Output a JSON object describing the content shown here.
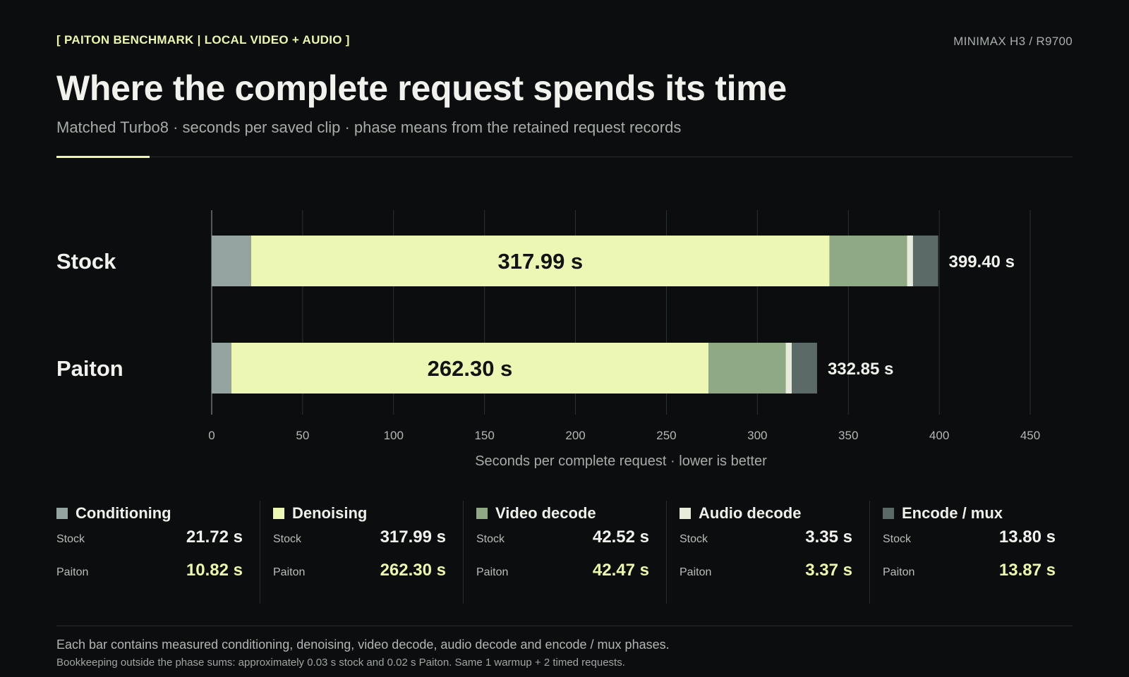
{
  "header": {
    "kicker": "[ PAITON BENCHMARK | LOCAL VIDEO + AUDIO ]",
    "system": "MINIMAX H3 / R9700",
    "title": "Where the complete request spends its time",
    "subtitle": "Matched Turbo8 · seconds per saved clip · phase means from the retained request records"
  },
  "chart_data": {
    "type": "bar",
    "orientation": "horizontal",
    "stacked": true,
    "categories": [
      "Stock",
      "Paiton"
    ],
    "series": [
      {
        "name": "Conditioning",
        "color": "#95a4a1",
        "values": [
          21.72,
          10.82
        ]
      },
      {
        "name": "Denoising",
        "color": "#edf7b4",
        "values": [
          317.99,
          262.3
        ]
      },
      {
        "name": "Video decode",
        "color": "#8fa984",
        "values": [
          42.52,
          42.47
        ]
      },
      {
        "name": "Audio decode",
        "color": "#e6ecd9",
        "values": [
          3.35,
          3.37
        ]
      },
      {
        "name": "Encode / mux",
        "color": "#5b6a67",
        "values": [
          13.8,
          13.87
        ]
      }
    ],
    "totals": [
      "399.40 s",
      "332.85 s"
    ],
    "inbar_labels": [
      "317.99 s",
      "262.30 s"
    ],
    "xlabel": "Seconds per complete request · lower is better",
    "xlim": [
      0,
      450
    ],
    "xticks": [
      0,
      50,
      100,
      150,
      200,
      250,
      300,
      350,
      400,
      450
    ],
    "grid": true
  },
  "legend": {
    "items": [
      {
        "name": "Conditioning",
        "color": "#95a4a1",
        "stock_label": "Stock",
        "stock": "21.72 s",
        "paiton_label": "Paiton",
        "paiton": "10.82 s"
      },
      {
        "name": "Denoising",
        "color": "#edf7b4",
        "stock_label": "Stock",
        "stock": "317.99 s",
        "paiton_label": "Paiton",
        "paiton": "262.30 s"
      },
      {
        "name": "Video decode",
        "color": "#8fa984",
        "stock_label": "Stock",
        "stock": "42.52 s",
        "paiton_label": "Paiton",
        "paiton": "42.47 s"
      },
      {
        "name": "Audio decode",
        "color": "#e6ecd9",
        "stock_label": "Stock",
        "stock": "3.35 s",
        "paiton_label": "Paiton",
        "paiton": "3.37 s"
      },
      {
        "name": "Encode / mux",
        "color": "#5b6a67",
        "stock_label": "Stock",
        "stock": "13.80 s",
        "paiton_label": "Paiton",
        "paiton": "13.87 s"
      }
    ]
  },
  "footer": {
    "note1": "Each bar contains measured conditioning, denoising, video decode, audio decode and encode / mux phases.",
    "note2": "Bookkeeping outside the phase sums: approximately 0.03 s stock and 0.02 s Paiton. Same 1 warmup + 2 timed requests."
  }
}
